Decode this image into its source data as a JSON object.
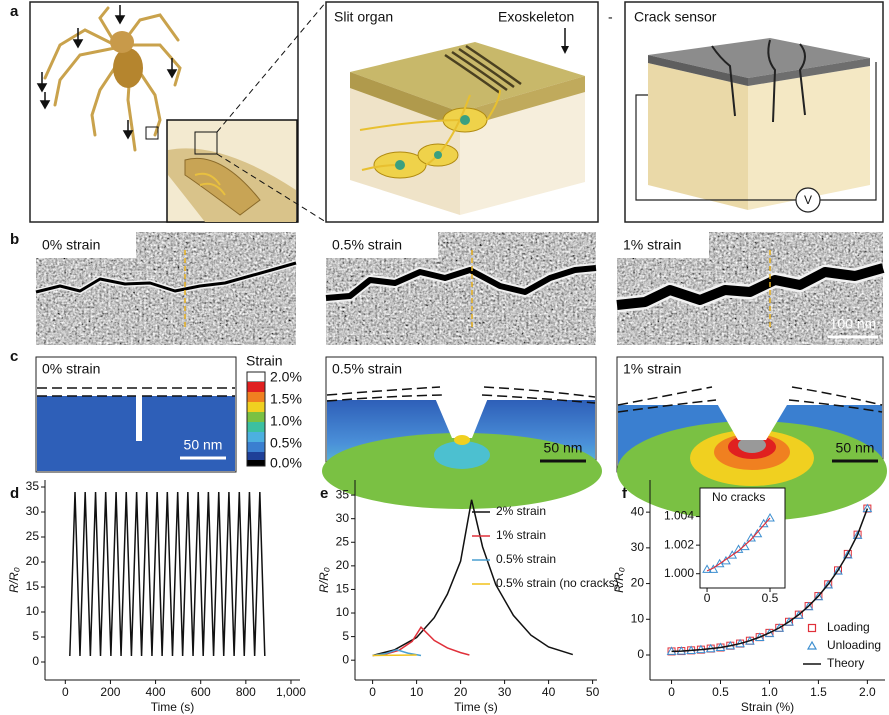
{
  "panels": {
    "a": "a",
    "b": "b",
    "c": "c",
    "d": "d",
    "e": "e",
    "f": "f"
  },
  "panel_a": {
    "slit_organ": "Slit organ",
    "exoskeleton": "Exoskeleton",
    "dash": "-",
    "crack_sensor": "Crack sensor",
    "voltmeter": "V"
  },
  "panel_b": {
    "labels": [
      "0% strain",
      "0.5% strain",
      "1% strain"
    ],
    "scale_bar": "100 nm"
  },
  "panel_c": {
    "labels": [
      "0% strain",
      "0.5% strain",
      "1% strain"
    ],
    "scale_bars": [
      "50 nm",
      "50 nm",
      "50 nm"
    ],
    "colorbar": {
      "title": "Strain",
      "ticks": [
        "2.0%",
        "1.5%",
        "1.0%",
        "0.5%",
        "0.0%"
      ]
    }
  },
  "chart_data": [
    {
      "type": "line",
      "xlabel": "Time (s)",
      "ylabel": "R/R₀",
      "x": [
        20,
        43,
        65,
        88,
        111,
        134,
        156,
        179,
        202,
        225,
        247,
        270,
        293,
        316,
        338,
        361,
        384,
        407,
        429,
        452,
        475,
        498,
        520,
        543,
        566,
        589,
        611,
        634,
        657,
        680,
        702,
        725,
        748,
        771,
        793,
        816,
        839,
        862,
        884
      ],
      "series": [
        {
          "color": "#111111",
          "values": [
            1.2,
            34,
            1.2,
            34,
            1.2,
            34,
            1.2,
            34,
            1.2,
            34,
            1.2,
            34,
            1.2,
            34,
            1.2,
            34,
            1.2,
            34,
            1.2,
            34,
            1.2,
            34,
            1.2,
            34,
            1.2,
            34,
            1.2,
            34,
            1.2,
            34,
            1.2,
            34,
            1.2,
            34,
            1.2,
            34,
            1.2,
            34,
            1.2
          ]
        }
      ],
      "xlim": [
        -90,
        1040
      ],
      "ylim": [
        -3.6,
        36.4
      ],
      "xticks": [
        0,
        200,
        400,
        600,
        800,
        {
          "value": 1000,
          "label": "1,000"
        }
      ],
      "yticks": [
        0,
        5,
        10,
        15,
        20,
        25,
        30,
        35
      ]
    },
    {
      "type": "line",
      "xlabel": "Time (s)",
      "ylabel": "R/R₀",
      "legend": "upper right",
      "series": [
        {
          "name": "2% strain",
          "color": "#111111",
          "x": [
            0,
            5,
            10,
            14,
            17,
            20,
            22.5,
            25,
            28,
            32,
            36,
            40,
            45.5
          ],
          "values": [
            1,
            2.2,
            4.8,
            9,
            14,
            21,
            34,
            24,
            16,
            9.5,
            5.3,
            2.8,
            1.2
          ]
        },
        {
          "name": "1% strain",
          "color": "#e0303a",
          "x": [
            0,
            3,
            6,
            9,
            11,
            14,
            17,
            20,
            22
          ],
          "values": [
            1,
            1.3,
            2.1,
            4,
            7,
            4.2,
            2.6,
            1.6,
            1.1
          ]
        },
        {
          "name": "0.5% strain",
          "color": "#4a9fd0",
          "x": [
            0,
            3,
            5.5,
            8,
            11
          ],
          "values": [
            1,
            1.4,
            2.2,
            1.5,
            1
          ]
        },
        {
          "name": "0.5% strain (no cracks)",
          "color": "#f2c21b",
          "x": [
            0,
            5,
            10
          ],
          "values": [
            1,
            1.05,
            1.1
          ]
        }
      ],
      "xlim": [
        -4,
        51
      ],
      "ylim": [
        -4.2,
        38.2
      ],
      "xticks": [
        0,
        10,
        20,
        30,
        40,
        50
      ],
      "yticks": [
        0,
        5,
        10,
        15,
        20,
        25,
        30,
        35
      ]
    },
    {
      "type": "scatter",
      "xlabel": "Strain (%)",
      "ylabel": "R/R₀",
      "legend": "lower right",
      "x": [
        0,
        0.1,
        0.2,
        0.3,
        0.4,
        0.5,
        0.6,
        0.7,
        0.8,
        0.9,
        1.0,
        1.1,
        1.2,
        1.3,
        1.4,
        1.5,
        1.6,
        1.7,
        1.8,
        1.9,
        2.0
      ],
      "series": [
        {
          "name": "Loading",
          "color": "#e0303a",
          "marker": "square",
          "values": [
            1,
            1.1,
            1.3,
            1.5,
            1.8,
            2.1,
            2.6,
            3.2,
            4,
            5,
            6.2,
            7.6,
            9.3,
            11.3,
            13.7,
            16.5,
            19.8,
            23.7,
            28.3,
            33.7,
            41
          ]
        },
        {
          "name": "Unloading",
          "color": "#3d8fd0",
          "marker": "triangle",
          "values": [
            1.0,
            1.1,
            1.25,
            1.5,
            1.75,
            2.1,
            2.55,
            3.15,
            3.9,
            4.9,
            6.0,
            7.5,
            9.2,
            11.1,
            13.5,
            16.3,
            19.6,
            23.5,
            28.0,
            33.5,
            41.0
          ]
        },
        {
          "name": "Theory",
          "color": "#111111",
          "marker": "none",
          "values": [
            1,
            1.1,
            1.3,
            1.5,
            1.8,
            2.1,
            2.6,
            3.2,
            4,
            5,
            6.2,
            7.6,
            9.3,
            11.3,
            13.7,
            16.5,
            19.8,
            23.7,
            28.3,
            33.7,
            41
          ]
        }
      ],
      "xlim": [
        -0.22,
        2.18
      ],
      "ylim": [
        -7,
        49
      ],
      "xticks": [
        0,
        0.5,
        {
          "value": 1,
          "label": "1.0"
        },
        1.5,
        {
          "value": 2,
          "label": "2.0"
        }
      ],
      "yticks": [
        0,
        10,
        20,
        30,
        40
      ]
    },
    {
      "type": "scatter",
      "annotation": "No cracks",
      "x": [
        0,
        0.05,
        0.1,
        0.15,
        0.2,
        0.25,
        0.3,
        0.35,
        0.4,
        0.45,
        0.5
      ],
      "series": [
        {
          "color": "#3d8fd0",
          "marker": "triangle",
          "values": [
            1.0003,
            1.0003,
            1.0007,
            1.0009,
            1.0013,
            1.0017,
            1.0019,
            1.0025,
            1.0028,
            1.0035,
            1.0039
          ]
        },
        {
          "color": "#e0303a",
          "marker": "none",
          "values": [
            1.0002,
            1.0004,
            1.0007,
            1.001,
            1.0013,
            1.0016,
            1.002,
            1.0024,
            1.0029,
            1.0034,
            1.0039
          ]
        }
      ],
      "xlim": [
        -0.056,
        0.619
      ],
      "ylim": [
        0.999,
        1.006
      ],
      "xticks": [
        0,
        0.5
      ],
      "yticks": [
        {
          "value": 1,
          "label": "1.000"
        },
        {
          "value": 1.002,
          "label": "1.002"
        },
        {
          "value": 1.004,
          "label": "1.004"
        }
      ]
    }
  ]
}
